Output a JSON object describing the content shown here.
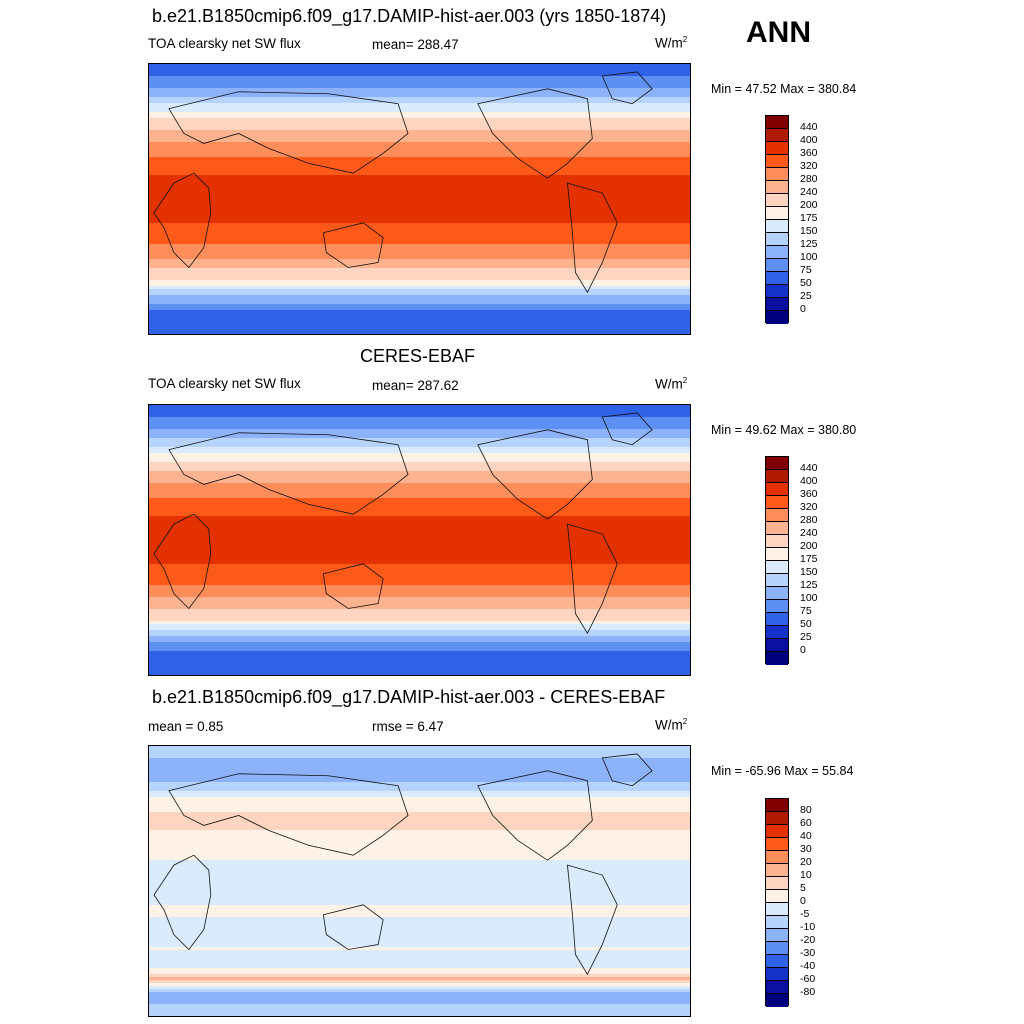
{
  "season": "ANN",
  "panels": [
    {
      "title": "b.e21.B1850cmip6.f09_g17.DAMIP-hist-aer.003 (yrs 1850-1874)",
      "left_label": "TOA clearsky net SW flux",
      "center_label": "mean= 288.47",
      "units": "W/m",
      "units_sup": "2",
      "minmax": "Min =  47.52 Max = 380.84"
    },
    {
      "title": "CERES-EBAF",
      "left_label": "TOA clearsky net SW flux",
      "center_label": "mean= 287.62",
      "units": "W/m",
      "units_sup": "2",
      "minmax": "Min =  49.62 Max = 380.80"
    },
    {
      "title": "b.e21.B1850cmip6.f09_g17.DAMIP-hist-aer.003 - CERES-EBAF",
      "left_label": "mean =   0.85",
      "center_label": "rmse =   6.47",
      "units": "W/m",
      "units_sup": "2",
      "minmax": "Min = -65.96 Max =  55.84"
    }
  ],
  "chart_data": [
    {
      "type": "heatmap",
      "map_projection": "cylindrical-equidistant",
      "longitude_range": [
        0,
        360
      ],
      "latitude_range": [
        -90,
        90
      ],
      "zonal_profile": {
        "latitude": [
          -90,
          -75,
          -65,
          -55,
          -45,
          -35,
          -25,
          -15,
          -5,
          5,
          15,
          25,
          35,
          45,
          55,
          65,
          75,
          90
        ],
        "value": [
          50,
          70,
          120,
          190,
          250,
          300,
          340,
          360,
          370,
          370,
          360,
          335,
          290,
          240,
          190,
          140,
          90,
          60
        ]
      },
      "colorbar": {
        "levels": [
          "440",
          "400",
          "360",
          "320",
          "280",
          "240",
          "200",
          "175",
          "150",
          "125",
          "100",
          "75",
          "50",
          "25",
          "0"
        ],
        "colors": [
          "#7f0000",
          "#b01a00",
          "#e33200",
          "#fd5a1a",
          "#fd8d5a",
          "#fdb38f",
          "#fdd5c0",
          "#fef1e6",
          "#d9ebfc",
          "#b5d3fb",
          "#8cb3f9",
          "#5e8ff2",
          "#2f62e6",
          "#1431c8",
          "#0a0fa0",
          "#00007f"
        ]
      }
    },
    {
      "type": "heatmap",
      "map_projection": "cylindrical-equidistant",
      "longitude_range": [
        0,
        360
      ],
      "latitude_range": [
        -90,
        90
      ],
      "zonal_profile": {
        "latitude": [
          -90,
          -75,
          -65,
          -55,
          -45,
          -35,
          -25,
          -15,
          -5,
          5,
          15,
          25,
          35,
          45,
          55,
          65,
          75,
          90
        ],
        "value": [
          52,
          72,
          118,
          188,
          248,
          300,
          340,
          362,
          372,
          372,
          360,
          336,
          292,
          242,
          188,
          140,
          92,
          60
        ]
      },
      "colorbar": {
        "levels": [
          "440",
          "400",
          "360",
          "320",
          "280",
          "240",
          "200",
          "175",
          "150",
          "125",
          "100",
          "75",
          "50",
          "25",
          "0"
        ],
        "colors": [
          "#7f0000",
          "#b01a00",
          "#e33200",
          "#fd5a1a",
          "#fd8d5a",
          "#fdb38f",
          "#fdd5c0",
          "#fef1e6",
          "#d9ebfc",
          "#b5d3fb",
          "#8cb3f9",
          "#5e8ff2",
          "#2f62e6",
          "#1431c8",
          "#0a0fa0",
          "#00007f"
        ]
      }
    },
    {
      "type": "heatmap",
      "map_projection": "cylindrical-equidistant",
      "longitude_range": [
        0,
        360
      ],
      "latitude_range": [
        -90,
        90
      ],
      "zonal_profile": {
        "latitude": [
          -90,
          -75,
          -65,
          -55,
          -45,
          -35,
          -25,
          -15,
          -5,
          5,
          15,
          25,
          35,
          45,
          55,
          65,
          75,
          90
        ],
        "value": [
          -5,
          -15,
          10,
          -5,
          0,
          -2,
          0,
          0,
          -2,
          -2,
          0,
          2,
          5,
          5,
          0,
          -10,
          -15,
          -5
        ]
      },
      "colorbar": {
        "levels": [
          "80",
          "60",
          "40",
          "30",
          "20",
          "10",
          "5",
          "0",
          "-5",
          "-10",
          "-20",
          "-30",
          "-40",
          "-60",
          "-80"
        ],
        "colors": [
          "#7f0000",
          "#b01a00",
          "#e33200",
          "#fd5a1a",
          "#fd8d5a",
          "#fdb38f",
          "#fdd5c0",
          "#fef1e6",
          "#d9ebfc",
          "#b5d3fb",
          "#8cb3f9",
          "#5e8ff2",
          "#2f62e6",
          "#1431c8",
          "#0a0fa0",
          "#00007f"
        ]
      }
    }
  ]
}
